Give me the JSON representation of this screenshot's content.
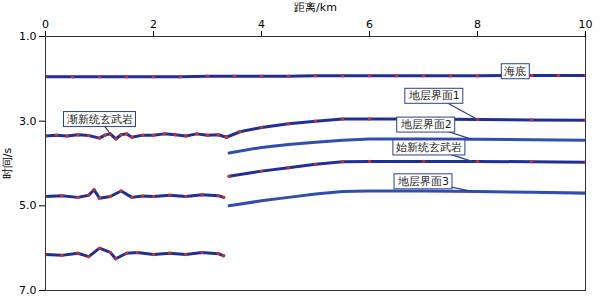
{
  "chart_data": {
    "type": "line",
    "x_label": "距离/km",
    "y_label": "时间/s",
    "xlim": [
      0,
      10
    ],
    "xticks": [
      0,
      2,
      4,
      6,
      8,
      10
    ],
    "ylim": [
      7,
      1
    ],
    "yticks": [
      1,
      3,
      5,
      7
    ],
    "grid": false,
    "series": [
      {
        "name": "海底",
        "color": "#1f2f9a",
        "marker": "circle",
        "x": [
          0,
          0.5,
          1,
          1.5,
          2,
          2.5,
          3,
          3.5,
          4,
          4.5,
          5,
          5.5,
          6,
          6.5,
          7,
          7.5,
          8,
          8.5,
          9,
          9.5,
          10
        ],
        "values": [
          1.95,
          1.95,
          1.95,
          1.95,
          1.95,
          1.95,
          1.94,
          1.94,
          1.94,
          1.94,
          1.93,
          1.93,
          1.93,
          1.93,
          1.93,
          1.93,
          1.93,
          1.92,
          1.92,
          1.92,
          1.92
        ],
        "label_at": [
          8.7,
          1.82
        ]
      },
      {
        "name": "渐新统玄武岩",
        "color": "#1f2f9a",
        "marker": "circle",
        "x": [
          0,
          0.2,
          0.4,
          0.6,
          0.8,
          1.0,
          1.1,
          1.2,
          1.3,
          1.4,
          1.5,
          1.6,
          1.8,
          2.0,
          2.2,
          2.4,
          2.6,
          2.8,
          3.0,
          3.2,
          3.35
        ],
        "values": [
          3.35,
          3.33,
          3.35,
          3.32,
          3.34,
          3.4,
          3.33,
          3.3,
          3.42,
          3.32,
          3.3,
          3.38,
          3.33,
          3.33,
          3.3,
          3.32,
          3.35,
          3.3,
          3.33,
          3.32,
          3.38
        ],
        "label_at": [
          1.0,
          2.95
        ],
        "points_to": [
          1.2,
          3.3
        ]
      },
      {
        "name": "地层界面1",
        "color": "#1f2f9a",
        "marker": "circle",
        "x": [
          3.35,
          3.6,
          4.0,
          4.5,
          5.0,
          5.5,
          6.0,
          7.0,
          8.0,
          9.0,
          10.0
        ],
        "values": [
          3.38,
          3.25,
          3.15,
          3.06,
          3.0,
          2.95,
          2.95,
          2.95,
          2.96,
          2.97,
          2.98
        ],
        "label_at": [
          7.2,
          2.4
        ],
        "points_to": [
          8.0,
          2.96
        ]
      },
      {
        "name": "地层界面2",
        "color": "#2f4fb0",
        "marker": "none",
        "x": [
          3.4,
          4.0,
          4.5,
          5.0,
          5.5,
          6.0,
          7.0,
          8.0,
          9.0,
          10.0
        ],
        "values": [
          3.75,
          3.62,
          3.55,
          3.5,
          3.45,
          3.42,
          3.42,
          3.43,
          3.44,
          3.45
        ],
        "label_at": [
          7.05,
          3.08
        ],
        "points_to": [
          7.9,
          3.43
        ]
      },
      {
        "name": "始新统玄武岩",
        "color": "#1f2f9a",
        "marker": "circle",
        "x": [
          0,
          0.3,
          0.6,
          0.8,
          0.9,
          1.0,
          1.2,
          1.4,
          1.6,
          1.8,
          2.0,
          2.3,
          2.6,
          2.9,
          3.2,
          3.3,
          3.35,
          3.4,
          4.0,
          4.5,
          5.0,
          5.5,
          6.0,
          7.0,
          8.0,
          9.0,
          10.0
        ],
        "values": [
          4.78,
          4.76,
          4.8,
          4.75,
          4.62,
          4.82,
          4.78,
          4.65,
          4.8,
          4.77,
          4.78,
          4.75,
          4.78,
          4.74,
          4.76,
          4.8,
          null,
          4.3,
          4.18,
          4.1,
          4.02,
          3.96,
          3.95,
          3.95,
          3.95,
          3.96,
          3.97
        ],
        "label_at": [
          7.1,
          3.62
        ],
        "points_to": [
          7.9,
          3.95
        ]
      },
      {
        "name": "地层界面3",
        "color": "#2f4fb0",
        "marker": "none",
        "x": [
          3.4,
          4.0,
          4.5,
          5.0,
          5.5,
          6.0,
          7.0,
          8.0,
          9.0,
          10.0
        ],
        "values": [
          5.0,
          4.88,
          4.8,
          4.72,
          4.66,
          4.65,
          4.65,
          4.66,
          4.68,
          4.7
        ],
        "label_at": [
          7.0,
          4.42
        ],
        "points_to": [
          7.9,
          4.66
        ]
      },
      {
        "color": "#1f2f9a",
        "marker": "circle",
        "x": [
          0,
          0.3,
          0.6,
          0.8,
          1.0,
          1.2,
          1.3,
          1.5,
          1.7,
          2.0,
          2.3,
          2.6,
          2.9,
          3.2,
          3.3
        ],
        "values": [
          6.15,
          6.17,
          6.12,
          6.2,
          6.0,
          6.1,
          6.25,
          6.12,
          6.1,
          6.15,
          6.12,
          6.15,
          6.1,
          6.13,
          6.18
        ]
      }
    ]
  }
}
